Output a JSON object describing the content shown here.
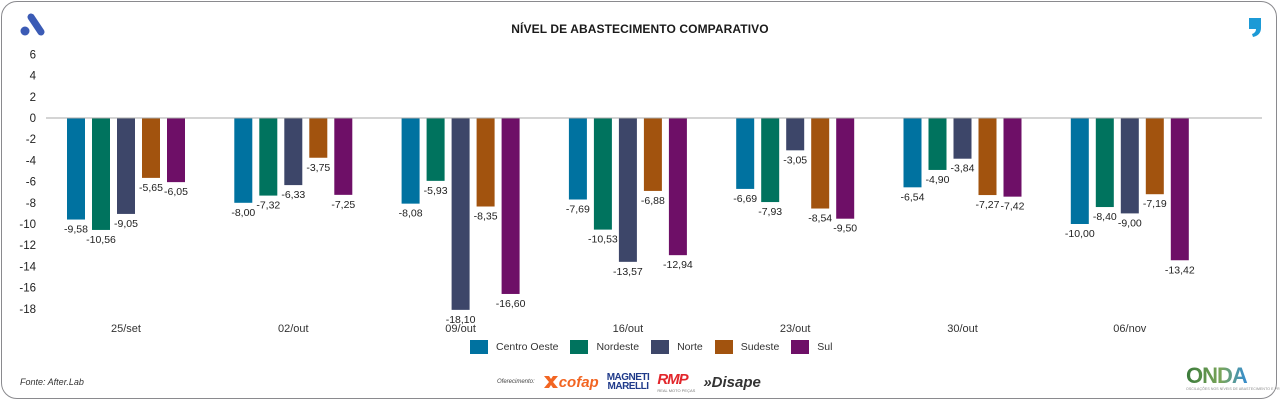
{
  "header": {
    "title": "NÍVEL DE ABASTECIMENTO COMPARATIVO",
    "left_logo_icon": "letter-a-logo-icon",
    "right_logo_icon": "comma-logo-icon"
  },
  "chart_data": {
    "type": "bar",
    "title": "NÍVEL DE ABASTECIMENTO COMPARATIVO",
    "xlabel": "",
    "ylabel": "",
    "ylim": [
      -18,
      6
    ],
    "yticks": [
      6,
      4,
      2,
      0,
      -2,
      -4,
      -6,
      -8,
      -10,
      -12,
      -14,
      -16,
      -18
    ],
    "grid": false,
    "legend_position": "bottom-center",
    "categories": [
      "25/set",
      "02/out",
      "09/out",
      "16/out",
      "23/out",
      "30/out",
      "06/nov"
    ],
    "series": [
      {
        "name": "Centro Oeste",
        "color": "#0072a0",
        "values": [
          -9.58,
          -8.0,
          -8.08,
          -7.69,
          -6.69,
          -6.54,
          -10.0
        ],
        "labels": [
          "-9,58",
          "-8,00",
          "-8,08",
          "-7,69",
          "-6,69",
          "-6,54",
          "-10,00"
        ]
      },
      {
        "name": "Nordeste",
        "color": "#00735e",
        "values": [
          -10.56,
          -7.32,
          -5.93,
          -10.53,
          -7.93,
          -4.9,
          -8.4
        ],
        "labels": [
          "-10,56",
          "-7,32",
          "-5,93",
          "-10,53",
          "-7,93",
          "-4,90",
          "-8,40"
        ]
      },
      {
        "name": "Norte",
        "color": "#3d4669",
        "values": [
          -9.05,
          -6.33,
          -18.1,
          -13.57,
          -3.05,
          -3.84,
          -9.0
        ],
        "labels": [
          "-9,05",
          "-6,33",
          "-18,10",
          "-13,57",
          "-3,05",
          "-3,84",
          "-9,00"
        ]
      },
      {
        "name": "Sudeste",
        "color": "#a2530e",
        "values": [
          -5.65,
          -3.75,
          -8.35,
          -6.88,
          -8.54,
          -7.27,
          -7.19
        ],
        "labels": [
          "-5,65",
          "-3,75",
          "-8,35",
          "-6,88",
          "-8,54",
          "-7,27",
          "-7,19"
        ]
      },
      {
        "name": "Sul",
        "color": "#6e0f67",
        "values": [
          -6.05,
          -7.25,
          -16.6,
          -12.94,
          -9.5,
          -7.42,
          -13.42
        ],
        "labels": [
          "-6,05",
          "-7,25",
          "-16,60",
          "-12,94",
          "-9,50",
          "-7,42",
          "-13,42"
        ]
      }
    ]
  },
  "footer": {
    "source": "Fonte: After.Lab",
    "sponsors_label": "Oferecimento:",
    "sponsors": [
      "cofap",
      "MAGNETI MARELLI",
      "RMP",
      "Disape"
    ],
    "rmp_sub": "REAL MOTO PEÇAS",
    "brand": "ONDA",
    "brand_sub": "OSCILAÇÕES NOS NÍVEIS DE ABASTECIMENTO E PREÇO"
  }
}
